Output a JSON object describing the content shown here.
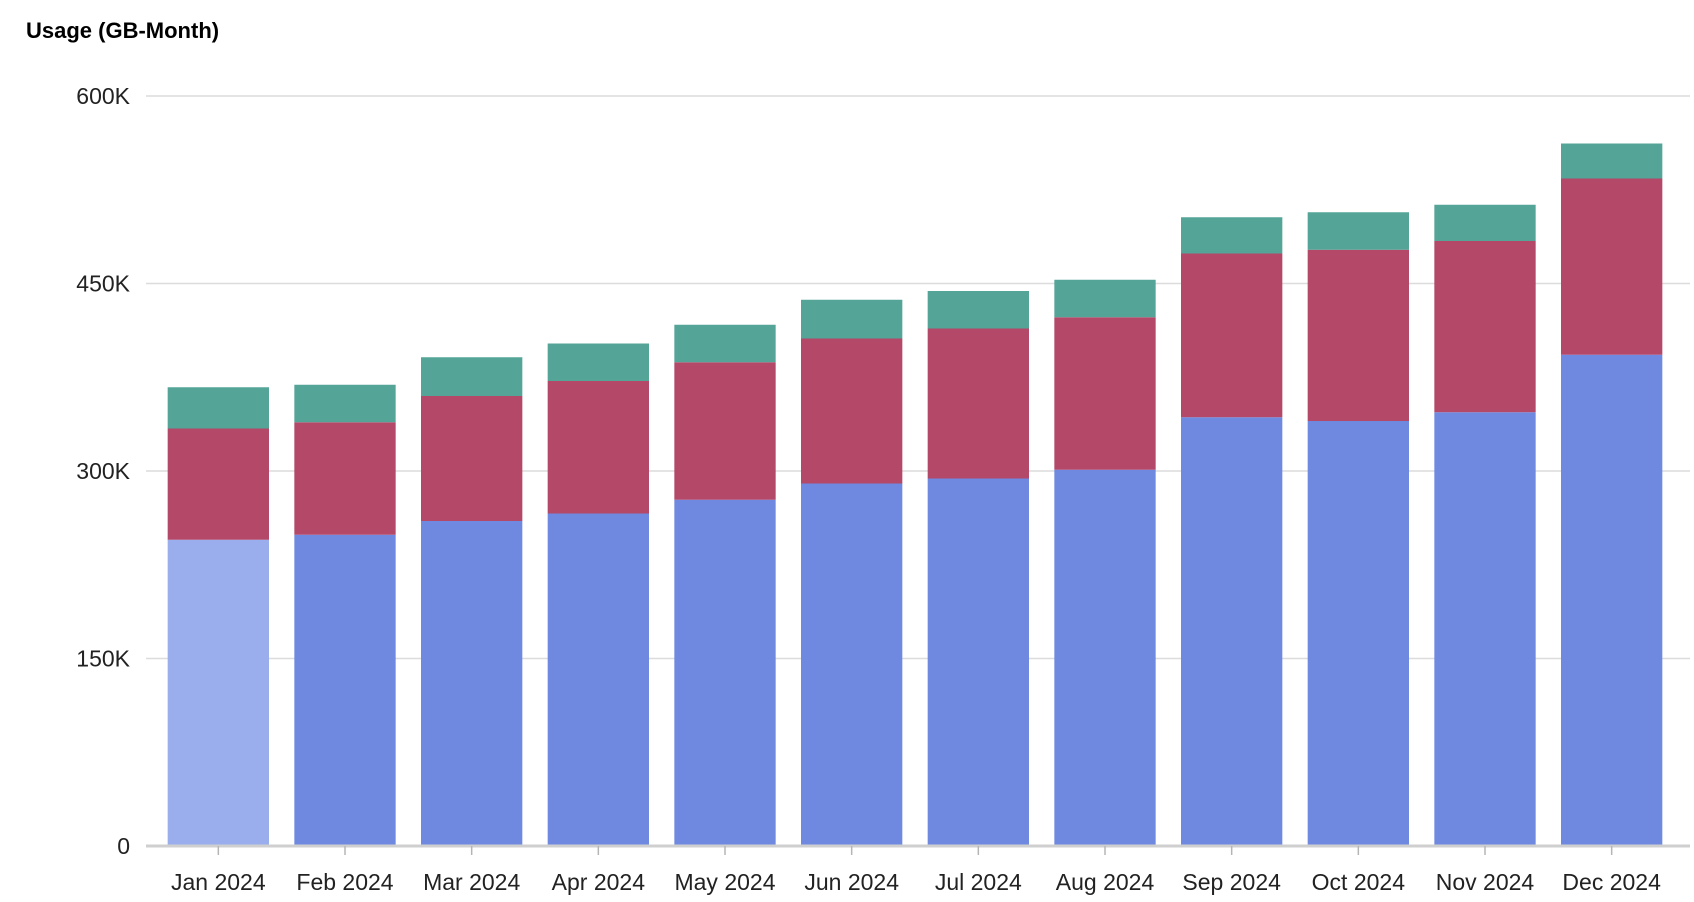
{
  "chart_data": {
    "type": "bar",
    "stacked": true,
    "title": "Usage (GB-Month)",
    "categories": [
      "Jan 2024",
      "Feb 2024",
      "Mar 2024",
      "Apr 2024",
      "May 2024",
      "Jun 2024",
      "Jul 2024",
      "Aug 2024",
      "Sep 2024",
      "Oct 2024",
      "Nov 2024",
      "Dec 2024"
    ],
    "series": [
      {
        "color": "#7089e0",
        "values": [
          245000,
          249000,
          260000,
          266000,
          277000,
          290000,
          294000,
          301000,
          343000,
          340000,
          347000,
          393000
        ]
      },
      {
        "color": "#b34868",
        "values": [
          89000,
          90000,
          100000,
          106000,
          110000,
          116000,
          120000,
          122000,
          131000,
          137000,
          137000,
          141000
        ]
      },
      {
        "color": "#54a597",
        "values": [
          33000,
          30000,
          31000,
          30000,
          30000,
          31000,
          30000,
          30000,
          29000,
          30000,
          29000,
          28000
        ]
      }
    ],
    "highlight_color": "#9aaded",
    "highlighted_category": "Jan 2024",
    "ylim": [
      0,
      600000
    ],
    "yticks": [
      0,
      150000,
      300000,
      450000,
      600000
    ],
    "ytick_labels": [
      "0",
      "150K",
      "300K",
      "450K",
      "600K"
    ],
    "grid": true,
    "legend": "none"
  }
}
